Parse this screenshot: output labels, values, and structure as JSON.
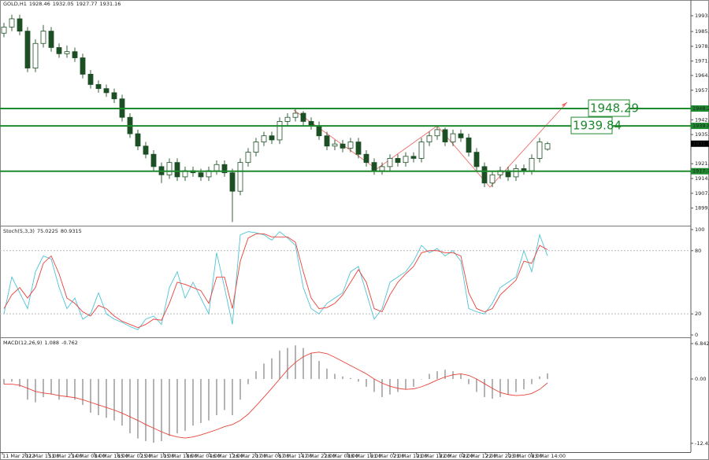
{
  "chart_data": [
    {
      "type": "candlestick",
      "title": "GOLD,H1",
      "open": [
        1985,
        1988,
        1992,
        1986,
        1968,
        1980,
        1986,
        1978,
        1975,
        1976,
        1973,
        1965,
        1960,
        1958,
        1956,
        1953,
        1944,
        1936,
        1930,
        1926,
        1920,
        1916,
        1922,
        1915,
        1918,
        1917,
        1915,
        1918,
        1921,
        1917,
        1908,
        1922,
        1927,
        1932,
        1935,
        1933,
        1942,
        1944,
        1946,
        1942,
        1940,
        1935,
        1930,
        1931,
        1929,
        1932,
        1926,
        1922,
        1918,
        1920,
        1924,
        1922,
        1925,
        1924,
        1932,
        1935,
        1938,
        1932,
        1936,
        1934,
        1927,
        1920,
        1912,
        1916,
        1918,
        1915,
        1919,
        1918,
        1924,
        1928.46
      ],
      "high": [
        1990,
        1994,
        1994,
        1988,
        1982,
        1989,
        1988,
        1980,
        1979,
        1978,
        1975,
        1967,
        1962,
        1960,
        1958,
        1955,
        1946,
        1938,
        1932,
        1928,
        1922,
        1924,
        1924,
        1920,
        1920,
        1919,
        1920,
        1923,
        1923,
        1919,
        1924,
        1929,
        1934,
        1937,
        1937,
        1944,
        1946,
        1948.29,
        1947,
        1944,
        1942,
        1937,
        1933,
        1933,
        1934,
        1934,
        1928,
        1924,
        1922,
        1926,
        1926,
        1927,
        1927,
        1934,
        1937,
        1940,
        1939,
        1938,
        1938,
        1936,
        1929,
        1922,
        1918,
        1920,
        1920,
        1921,
        1921,
        1926,
        1934,
        1932.05
      ],
      "low": [
        1983,
        1986,
        1984,
        1966,
        1966,
        1978,
        1976,
        1973,
        1973,
        1971,
        1963,
        1958,
        1956,
        1954,
        1951,
        1942,
        1934,
        1928,
        1924,
        1918,
        1912,
        1914,
        1913,
        1913,
        1915,
        1913,
        1913,
        1916,
        1915,
        1893,
        1906,
        1920,
        1925,
        1930,
        1931,
        1931,
        1940,
        1942,
        1940,
        1938,
        1933,
        1928,
        1928,
        1927,
        1927,
        1924,
        1920,
        1916,
        1916,
        1918,
        1920,
        1920,
        1922,
        1922,
        1930,
        1933,
        1930,
        1930,
        1932,
        1925,
        1918,
        1910,
        1910,
        1914,
        1913,
        1913,
        1916,
        1916,
        1922,
        1927.77
      ],
      "close": [
        1988,
        1992,
        1986,
        1968,
        1980,
        1986,
        1978,
        1975,
        1976,
        1973,
        1965,
        1960,
        1958,
        1956,
        1953,
        1944,
        1936,
        1930,
        1926,
        1920,
        1916,
        1922,
        1915,
        1918,
        1917,
        1915,
        1918,
        1921,
        1917,
        1908,
        1922,
        1927,
        1932,
        1935,
        1933,
        1942,
        1944,
        1946,
        1942,
        1940,
        1935,
        1930,
        1931,
        1929,
        1932,
        1926,
        1922,
        1918,
        1920,
        1924,
        1922,
        1925,
        1924,
        1932,
        1935,
        1938,
        1932,
        1936,
        1934,
        1927,
        1920,
        1912,
        1916,
        1918,
        1915,
        1919,
        1918,
        1924,
        1932,
        1931.16
      ],
      "up_color": "#ffffff",
      "down_color": "#1d4f24",
      "wick_color": "#1d4f24",
      "ylim": [
        1891.6,
        1998.1
      ],
      "yticks": [
        {
          "value": 1993.5,
          "label": "1993.50"
        },
        {
          "value": 1985.8,
          "label": "1985.80"
        },
        {
          "value": 1978.6,
          "label": "1978.60"
        },
        {
          "value": 1971.4,
          "label": "1971.40"
        },
        {
          "value": 1964.4,
          "label": "1964.40"
        },
        {
          "value": 1957.2,
          "label": "1957.20"
        },
        {
          "value": 1942.8,
          "label": "1942.80"
        },
        {
          "value": 1935.6,
          "label": "1935.60"
        },
        {
          "value": 1921.4,
          "label": "1921.40"
        },
        {
          "value": 1914.2,
          "label": "1914.20"
        },
        {
          "value": 1907,
          "label": "1907.00"
        },
        {
          "value": 1899.8,
          "label": "1899.80"
        }
      ],
      "hlines": [
        1948.29,
        1939.84,
        1917.75
      ],
      "hline_color": "#1e8a2e",
      "time_labels": [
        "11 Mar 2022",
        "11 Mar 15:00",
        "11 Mar 23:00",
        "14 Mar 08:00",
        "14 Mar 16:00",
        "15 Mar 02:00",
        "15 Mar 10:00",
        "15 Mar 18:00",
        "16 Mar 04:00",
        "16 Mar 12:00",
        "16 Mar 20:00",
        "17 Mar 06:00",
        "17 Mar 14:00",
        "17 Mar 22:00",
        "18 Mar 08:00",
        "18 Mar 16:00",
        "21 Mar 02:00",
        "21 Mar 10:00",
        "21 Mar 18:00",
        "22 Mar 04:00",
        "22 Mar 12:00",
        "22 Mar 20:00",
        "23 Mar 06:00",
        "23 Mar 14:00"
      ]
    },
    {
      "type": "line",
      "title": "Stoch(5,3,3)",
      "series": [
        {
          "color": "#4fc3d6",
          "values": [
            20,
            55,
            40,
            25,
            60,
            75,
            72,
            45,
            25,
            35,
            15,
            20,
            40,
            20,
            15,
            12,
            8,
            5,
            15,
            18,
            10,
            45,
            60,
            35,
            50,
            35,
            20,
            78,
            45,
            10,
            95,
            98,
            97,
            95,
            90,
            98,
            92,
            85,
            45,
            25,
            20,
            30,
            35,
            40,
            60,
            65,
            40,
            15,
            25,
            50,
            55,
            60,
            70,
            85,
            78,
            82,
            75,
            80,
            70,
            25,
            22,
            20,
            30,
            45,
            50,
            55,
            80,
            60,
            95,
            75.0225
          ]
        },
        {
          "color": "#e8433a",
          "values": [
            25,
            38,
            45,
            35,
            45,
            68,
            75,
            58,
            35,
            30,
            22,
            18,
            28,
            25,
            18,
            13,
            10,
            7,
            10,
            15,
            14,
            30,
            50,
            48,
            45,
            42,
            30,
            55,
            55,
            25,
            70,
            92,
            96,
            96,
            93,
            93,
            93,
            88,
            60,
            35,
            25,
            26,
            30,
            38,
            50,
            62,
            50,
            25,
            22,
            38,
            50,
            58,
            65,
            78,
            80,
            80,
            78,
            78,
            75,
            40,
            25,
            22,
            25,
            38,
            45,
            52,
            70,
            68,
            85,
            80.9315
          ]
        }
      ],
      "ylim": [
        -1.5,
        102.2
      ],
      "yticks": [
        0,
        20,
        80,
        100
      ],
      "levels": [
        20,
        80
      ]
    },
    {
      "type": "macd",
      "title": "MACD(12,26,9)",
      "histogram": [
        -1,
        -0.5,
        -1.5,
        -4,
        -4.5,
        -3.5,
        -3,
        -4,
        -3.5,
        -4,
        -5,
        -6.5,
        -7,
        -7.5,
        -8,
        -9,
        -10.5,
        -11.5,
        -12,
        -12.3,
        -12,
        -11,
        -10.5,
        -10,
        -9,
        -8.5,
        -8,
        -7,
        -6,
        -7,
        -4,
        -1,
        1.5,
        3,
        4,
        5.5,
        6,
        6.5,
        6,
        5,
        3.5,
        2,
        1,
        0.5,
        0.2,
        -0.5,
        -1.5,
        -2.5,
        -3.5,
        -3,
        -2.5,
        -2,
        -1.5,
        0,
        1,
        1.5,
        1.8,
        1.5,
        1,
        -1,
        -2.5,
        -3.5,
        -3.8,
        -3.5,
        -3,
        -2.5,
        -2,
        -1,
        0.5,
        1.088
      ],
      "signal": [
        -1,
        -1,
        -1.2,
        -1.8,
        -2.4,
        -2.7,
        -2.9,
        -3.2,
        -3.4,
        -3.6,
        -4,
        -4.5,
        -5,
        -5.5,
        -6,
        -6.6,
        -7.3,
        -8,
        -8.8,
        -9.5,
        -10.2,
        -10.8,
        -11.2,
        -11.4,
        -11.2,
        -10.8,
        -10.3,
        -9.8,
        -9.2,
        -8.8,
        -8,
        -6.8,
        -5.2,
        -3.5,
        -1.8,
        0,
        1.8,
        3.2,
        4.3,
        5,
        5.2,
        4.9,
        4.2,
        3.4,
        2.6,
        1.8,
        1,
        0,
        -0.8,
        -1.4,
        -1.8,
        -2,
        -1.9,
        -1.5,
        -0.9,
        -0.2,
        0.4,
        0.8,
        1,
        0.7,
        0,
        -0.9,
        -1.8,
        -2.6,
        -3,
        -3.2,
        -3.1,
        -2.8,
        -2,
        -0.762
      ],
      "histogram_color": "#b4b4b4",
      "signal_color": "#e8433a",
      "ylim": [
        -14.13,
        7.75
      ],
      "yticks": [
        6.842,
        {
          "value": 0,
          "label": "0.00"
        },
        -12.424
      ]
    }
  ]
}
